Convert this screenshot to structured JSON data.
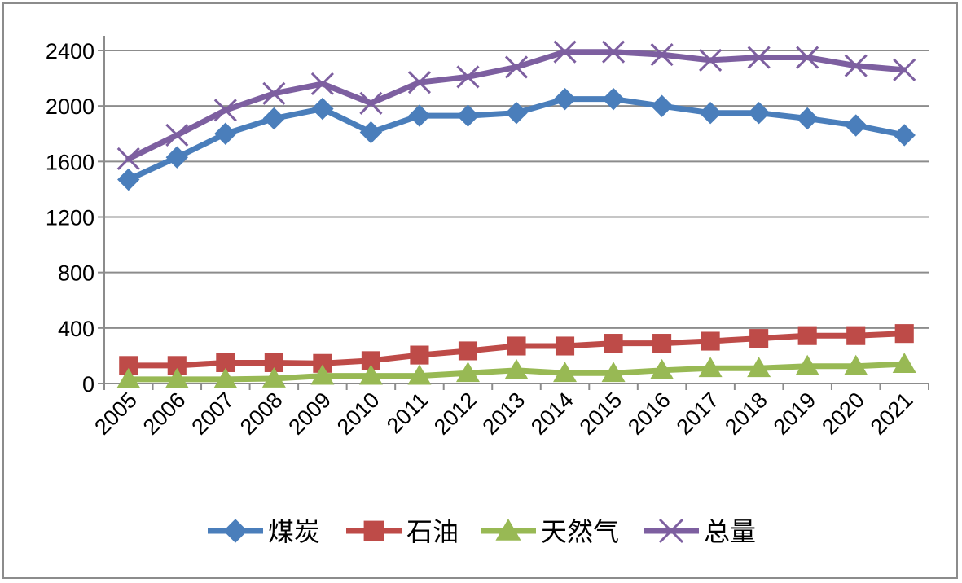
{
  "chart_data": {
    "type": "line",
    "title": "",
    "xlabel": "",
    "ylabel": "",
    "categories": [
      "2005",
      "2006",
      "2007",
      "2008",
      "2009",
      "2010",
      "2011",
      "2012",
      "2013",
      "2014",
      "2015",
      "2016",
      "2017",
      "2018",
      "2019",
      "2020",
      "2021"
    ],
    "ylim": [
      0,
      2400
    ],
    "yticks": [
      0,
      400,
      800,
      1200,
      1600,
      2000,
      2400
    ],
    "ytick_labels": [
      "0",
      "400",
      "800",
      "1200",
      "1600",
      "2000",
      "2400"
    ],
    "grid": true,
    "legend_position": "bottom",
    "series": [
      {
        "name": "煤炭",
        "color": "#4a7ebb",
        "marker": "diamond",
        "values": [
          1470,
          1630,
          1800,
          1910,
          1980,
          1810,
          1930,
          1930,
          1950,
          2050,
          2050,
          2000,
          1950,
          1950,
          1910,
          1860,
          1790
        ]
      },
      {
        "name": "石油",
        "color": "#be4b48",
        "marker": "square",
        "values": [
          130,
          130,
          150,
          150,
          145,
          165,
          205,
          235,
          270,
          270,
          290,
          290,
          305,
          325,
          345,
          345,
          360
        ]
      },
      {
        "name": "天然气",
        "color": "#98b954",
        "marker": "triangle",
        "values": [
          30,
          30,
          30,
          35,
          55,
          55,
          55,
          75,
          95,
          75,
          75,
          95,
          110,
          110,
          125,
          125,
          140
        ]
      },
      {
        "name": "总量",
        "color": "#7d5fa0",
        "marker": "x",
        "values": [
          1620,
          1790,
          1970,
          2090,
          2160,
          2020,
          2170,
          2210,
          2280,
          2390,
          2390,
          2370,
          2330,
          2350,
          2350,
          2290,
          2260
        ]
      }
    ]
  }
}
